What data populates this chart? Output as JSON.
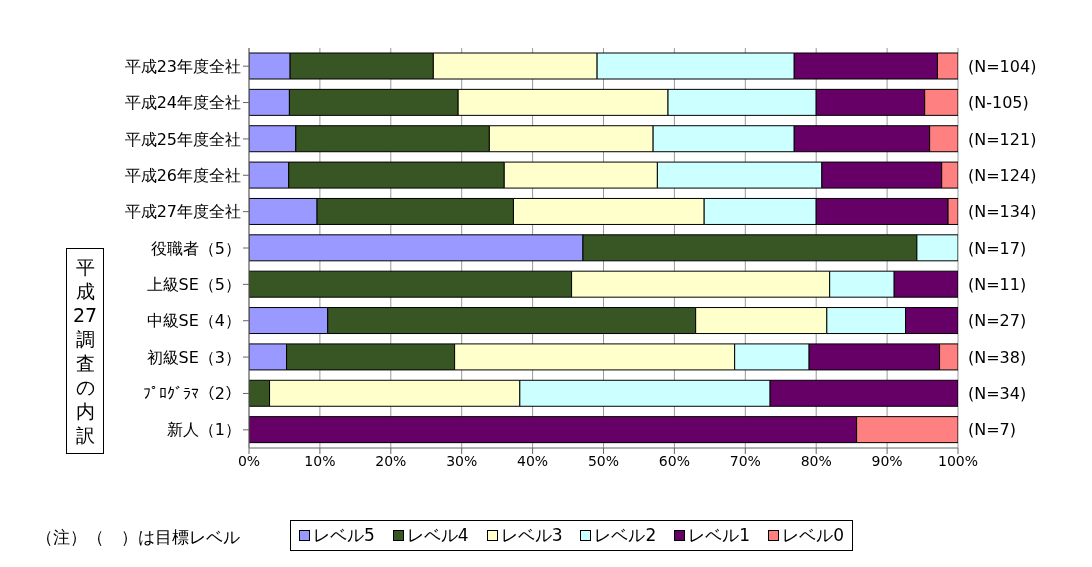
{
  "chart_data": {
    "type": "bar",
    "orientation": "horizontal",
    "stacked": true,
    "categories": [
      "平成23年度全社",
      "平成24年度全社",
      "平成25年度全社",
      "平成26年度全社",
      "平成27年度全社",
      "役職者（5）",
      "上級SE（5）",
      "中級SE（4）",
      "初級SE（3）",
      "ﾌﾟﾛｸﾞﾗﾏ（2）",
      "新人（1）"
    ],
    "series": [
      {
        "name": "レベル5",
        "color": "#9999ff",
        "values": [
          5.8,
          5.7,
          6.6,
          5.6,
          9.6,
          47.1,
          0,
          11.1,
          5.3,
          0,
          0
        ]
      },
      {
        "name": "レベル4",
        "color": "#375623",
        "values": [
          20.2,
          23.8,
          27.3,
          30.4,
          27.7,
          47.1,
          45.5,
          51.9,
          23.7,
          2.9,
          0
        ]
      },
      {
        "name": "レベル3",
        "color": "#ffffcc",
        "values": [
          23.1,
          29.6,
          23.1,
          21.6,
          26.9,
          0,
          36.4,
          18.5,
          39.5,
          35.3,
          0
        ]
      },
      {
        "name": "レベル2",
        "color": "#ccffff",
        "values": [
          27.8,
          20.9,
          19.9,
          23.2,
          15.8,
          5.8,
          9.1,
          11.1,
          10.5,
          35.3,
          0
        ]
      },
      {
        "name": "レベル1",
        "color": "#660066",
        "values": [
          20.2,
          15.3,
          19.1,
          16.9,
          18.6,
          0,
          9.1,
          7.4,
          18.4,
          26.5,
          85.7
        ]
      },
      {
        "name": "レベル0",
        "color": "#ff8080",
        "values": [
          2.9,
          4.7,
          4.0,
          2.3,
          1.4,
          0,
          0,
          0,
          2.6,
          0,
          14.3
        ]
      }
    ],
    "xlim": [
      0,
      100
    ],
    "xticks": [
      {
        "value": 0,
        "label": "0%"
      },
      {
        "value": 10,
        "label": "10%"
      },
      {
        "value": 20,
        "label": "20%"
      },
      {
        "value": 30,
        "label": "30%"
      },
      {
        "value": 40,
        "label": "40%"
      },
      {
        "value": 50,
        "label": "50%"
      },
      {
        "value": 60,
        "label": "60%"
      },
      {
        "value": 70,
        "label": "70%"
      },
      {
        "value": 80,
        "label": "80%"
      },
      {
        "value": 90,
        "label": "90%"
      },
      {
        "value": 100,
        "label": "100%"
      }
    ],
    "grid": "x",
    "legend": "bottom",
    "annotations": [
      "(N=104)",
      "(N-105)",
      "(N=121)",
      "(N=124)",
      "(N=134)",
      "(N=17)",
      "(N=11)",
      "(N=27)",
      "(N=38)",
      "(N=34)",
      "(N=7)",
      "平成27調査の内訳",
      "（注）（　）は目標レベル"
    ]
  }
}
